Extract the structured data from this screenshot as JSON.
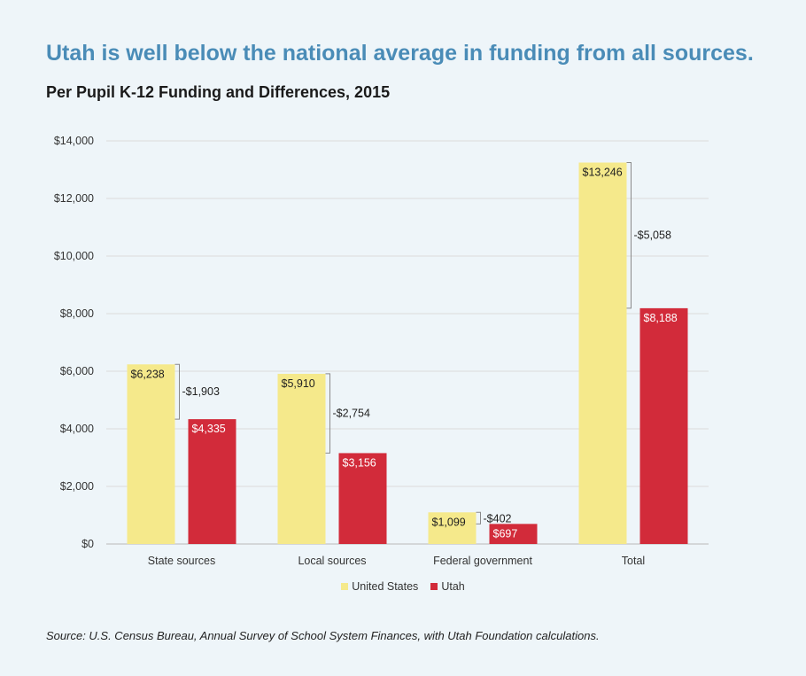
{
  "title": "Utah is well below the national average in funding from all sources.",
  "subtitle": "Per Pupil K-12 Funding and Differences, 2015",
  "source": "Source:  U.S. Census Bureau, Annual Survey of School System Finances, with Utah Foundation calculations.",
  "colors": {
    "us": "#f5e98b",
    "utah": "#d22b3a",
    "background": "#eef5f9",
    "title": "#4a8cb7"
  },
  "chart_data": {
    "type": "bar",
    "categories": [
      "State sources",
      "Local sources",
      "Federal government",
      "Total"
    ],
    "series": [
      {
        "name": "United States",
        "values": [
          6238,
          5910,
          1099,
          13246
        ],
        "labels": [
          "$6,238",
          "$5,910",
          "$1,099",
          "$13,246"
        ]
      },
      {
        "name": "Utah",
        "values": [
          4335,
          3156,
          697,
          8188
        ],
        "labels": [
          "$4,335",
          "$3,156",
          "$697",
          "$8,188"
        ]
      }
    ],
    "differences": [
      "-$1,903",
      "-$2,754",
      "-$402",
      "-$5,058"
    ],
    "yticks": [
      0,
      2000,
      4000,
      6000,
      8000,
      10000,
      12000,
      14000
    ],
    "ytick_labels": [
      "$0",
      "$2,000",
      "$4,000",
      "$6,000",
      "$8,000",
      "$10,000",
      "$12,000",
      "$14,000"
    ],
    "ylim": [
      0,
      14000
    ],
    "grid": true,
    "legend": "bottom-center"
  }
}
